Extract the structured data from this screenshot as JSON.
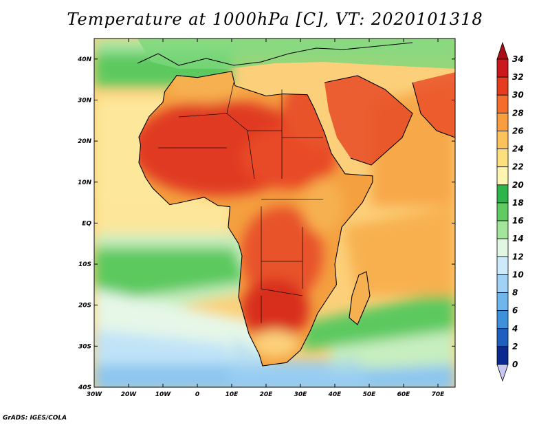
{
  "map": {
    "title": "Temperature at 1000hPa [C], VT: 2020101318",
    "variable": "Temperature",
    "level": "1000hPa",
    "units": "C",
    "valid_time": "2020101318",
    "lon_range": [
      -30,
      75
    ],
    "lat_range": [
      -40,
      45
    ],
    "lat_labels": [
      "40N",
      "30N",
      "20N",
      "10N",
      "EQ",
      "10S",
      "20S",
      "30S",
      "40S"
    ],
    "lon_labels": [
      "30W",
      "20W",
      "10W",
      "0",
      "10E",
      "20E",
      "30E",
      "40E",
      "50E",
      "60E",
      "70E"
    ],
    "lat_values": [
      40,
      30,
      20,
      10,
      0,
      -10,
      -20,
      -30,
      -40
    ],
    "lon_values": [
      -30,
      -20,
      -10,
      0,
      10,
      20,
      30,
      40,
      50,
      60,
      70
    ]
  },
  "colorbar": {
    "labels": [
      "34",
      "32",
      "30",
      "28",
      "26",
      "24",
      "22",
      "20",
      "18",
      "16",
      "14",
      "12",
      "10",
      "8",
      "6",
      "4",
      "2",
      "0"
    ],
    "colors": [
      "#a50f15",
      "#cb181d",
      "#e63c20",
      "#f46d2b",
      "#f99d3e",
      "#fcc35c",
      "#fce07d",
      "#fdf6b0",
      "#2fb44a",
      "#5fcb60",
      "#a3e69b",
      "#e1f7e3",
      "#cdeafb",
      "#9fd2f5",
      "#6fb6ec",
      "#3f90db",
      "#1f5fbd",
      "#0a2a8f",
      "#0a1a5e",
      "#c8c8f0"
    ]
  },
  "footer": {
    "credit": "GrADS: IGES/COLA"
  }
}
